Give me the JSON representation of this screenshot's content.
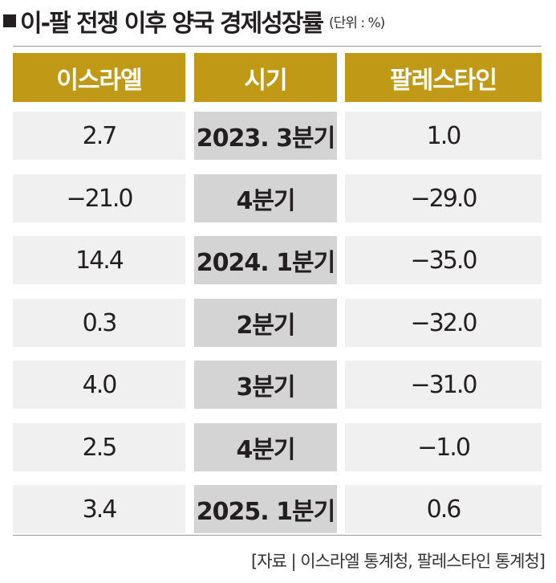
{
  "title": "이-팔 전쟁 이후 양국 경제성장률",
  "unit": "(단위 : %)",
  "source": "[자료 | 이스라엘 통계청, 팔레스타인 통계청]",
  "colors": {
    "header_bg": "#c09a17",
    "header_text": "#ffffff",
    "row_bg": "#f0f0f0",
    "period_bg": "#d4d4d4"
  },
  "chart_data": {
    "type": "table",
    "title": "이-팔 전쟁 이후 양국 경제성장률",
    "unit": "(단위 : %)",
    "columns": [
      "이스라엘",
      "시기",
      "팔레스타인"
    ],
    "rows": [
      [
        "2.7",
        "2023. 3분기",
        "1.0"
      ],
      [
        "−21.0",
        "4분기",
        "−29.0"
      ],
      [
        "14.4",
        "2024. 1분기",
        "−35.0"
      ],
      [
        "0.3",
        "2분기",
        "−32.0"
      ],
      [
        "4.0",
        "3분기",
        "−31.0"
      ],
      [
        "2.5",
        "4분기",
        "−1.0"
      ],
      [
        "3.4",
        "2025. 1분기",
        "0.6"
      ]
    ],
    "series": [
      {
        "name": "이스라엘",
        "values": [
          2.7,
          -21.0,
          14.4,
          0.3,
          4.0,
          2.5,
          3.4
        ]
      },
      {
        "name": "팔레스타인",
        "values": [
          1.0,
          -29.0,
          -35.0,
          -32.0,
          -31.0,
          -1.0,
          0.6
        ]
      }
    ],
    "categories": [
      "2023. 3분기",
      "4분기",
      "2024. 1분기",
      "2분기",
      "3분기",
      "4분기",
      "2025. 1분기"
    ]
  }
}
